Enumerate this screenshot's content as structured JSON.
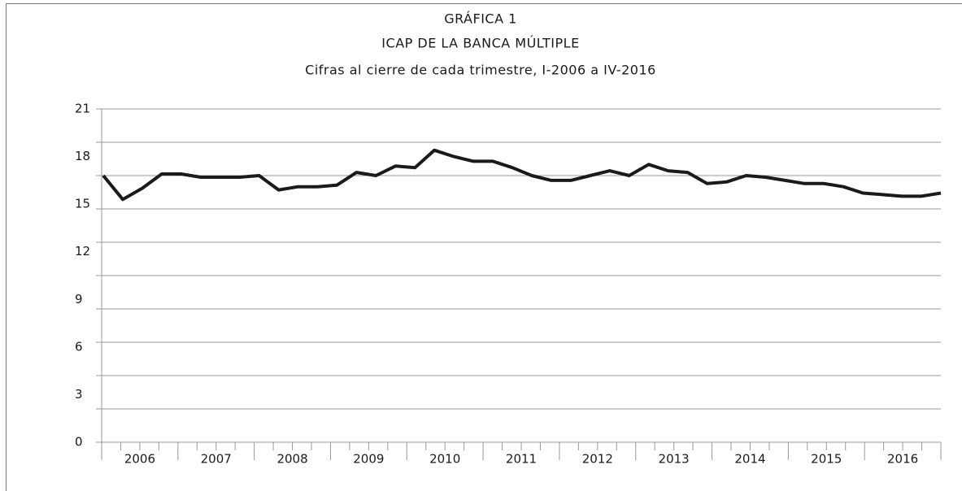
{
  "chart_data": {
    "type": "line",
    "title": "GRÁFICA 1",
    "subtitle": "ICAP DE LA BANCA MÚLTIPLE",
    "caption": "Cifras al cierre de cada trimestre, I-2006 a IV-2016",
    "groups": [
      "2006",
      "2007",
      "2008",
      "2009",
      "2010",
      "2011",
      "2012",
      "2013",
      "2014",
      "2015",
      "2016"
    ],
    "values": [
      16.8,
      15.3,
      16.0,
      16.9,
      16.9,
      16.7,
      16.7,
      16.7,
      16.8,
      15.9,
      16.1,
      16.1,
      16.2,
      17.0,
      16.8,
      17.4,
      17.3,
      18.4,
      18.0,
      17.7,
      17.7,
      17.3,
      16.8,
      16.5,
      16.5,
      16.8,
      17.1,
      16.8,
      17.5,
      17.1,
      17.0,
      16.3,
      16.4,
      16.8,
      16.7,
      16.5,
      16.3,
      16.3,
      16.1,
      15.7,
      15.6,
      15.5,
      15.5,
      15.7
    ],
    "color": "#1a1a1a",
    "ylim": [
      0,
      21
    ],
    "yticks": [
      0,
      3,
      6,
      9,
      12,
      15,
      18,
      21
    ],
    "ygrid": [
      0,
      2.1,
      4.2,
      6.3,
      8.4,
      10.5,
      12.6,
      14.7,
      16.8,
      18.9,
      21
    ],
    "grid": true
  }
}
